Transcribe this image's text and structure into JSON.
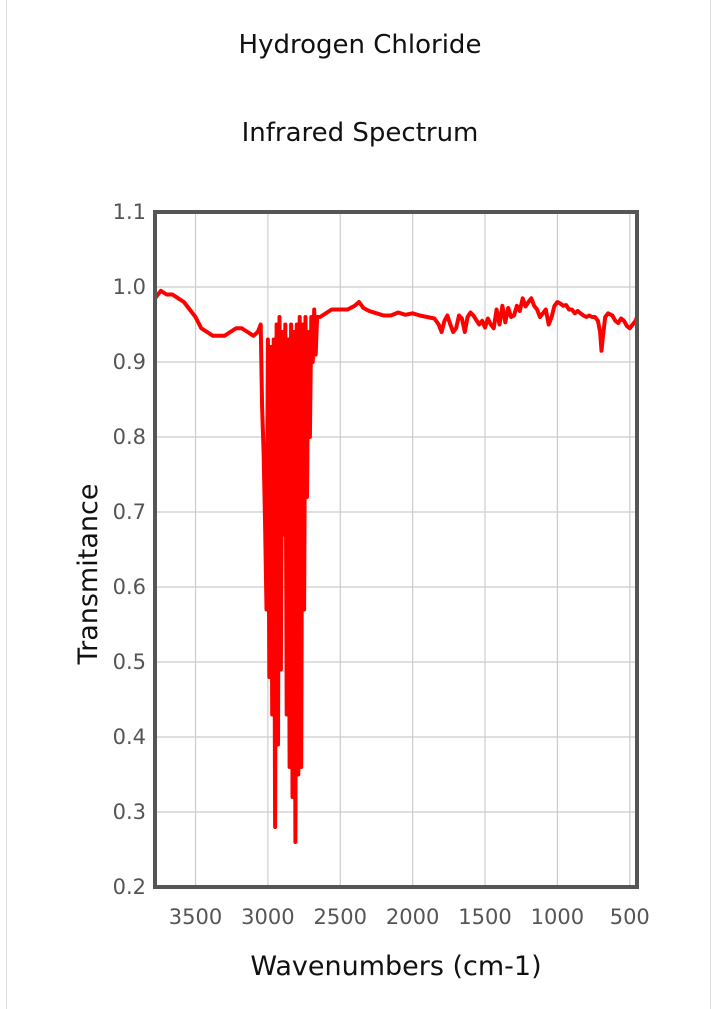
{
  "chart_data": {
    "type": "line",
    "title": "Hydrogen Chloride",
    "subtitle": "Infrared Spectrum",
    "xlabel": "Wavenumbers (cm-1)",
    "ylabel": "Transmitance",
    "xlim": [
      3780,
      450
    ],
    "ylim": [
      0.2,
      1.1
    ],
    "x_reversed": true,
    "x_ticks": [
      "3500",
      "3000",
      "2500",
      "2000",
      "1500",
      "1000",
      "500"
    ],
    "x_tick_values": [
      3500,
      3000,
      2500,
      2000,
      1500,
      1000,
      500
    ],
    "y_ticks": [
      "1.1",
      "1.0",
      "0.9",
      "0.8",
      "0.7",
      "0.6",
      "0.5",
      "0.4",
      "0.3",
      "0.2"
    ],
    "y_tick_values": [
      1.1,
      1.0,
      0.9,
      0.8,
      0.7,
      0.6,
      0.5,
      0.4,
      0.3,
      0.2
    ],
    "grid": true,
    "line_color": "#ff0000",
    "series": [
      {
        "x": [
          3780,
          3740,
          3700,
          3660,
          3620,
          3580,
          3540,
          3500,
          3460,
          3420,
          3380,
          3340,
          3300,
          3260,
          3220,
          3180,
          3140,
          3100,
          3070,
          3050,
          3040,
          3030,
          3020,
          3010,
          3000,
          2990,
          2980,
          2970,
          2960,
          2950,
          2940,
          2930,
          2920,
          2910,
          2900,
          2890,
          2880,
          2870,
          2860,
          2850,
          2840,
          2830,
          2820,
          2810,
          2800,
          2790,
          2780,
          2770,
          2760,
          2750,
          2740,
          2730,
          2720,
          2710,
          2700,
          2690,
          2680,
          2670,
          2660,
          2640,
          2600,
          2560,
          2500,
          2450,
          2400,
          2370,
          2340,
          2320,
          2300,
          2250,
          2200,
          2150,
          2100,
          2050,
          2000,
          1950,
          1900,
          1850,
          1820,
          1800,
          1780,
          1760,
          1740,
          1720,
          1700,
          1680,
          1660,
          1640,
          1620,
          1600,
          1580,
          1560,
          1540,
          1520,
          1500,
          1480,
          1460,
          1440,
          1420,
          1400,
          1380,
          1360,
          1340,
          1320,
          1300,
          1280,
          1260,
          1240,
          1220,
          1200,
          1180,
          1160,
          1140,
          1120,
          1100,
          1080,
          1060,
          1040,
          1020,
          1000,
          980,
          960,
          940,
          920,
          900,
          880,
          860,
          840,
          820,
          800,
          780,
          760,
          740,
          720,
          705,
          695,
          685,
          670,
          650,
          620,
          600,
          580,
          560,
          540,
          520,
          500,
          480,
          460,
          450
        ],
        "y": [
          0.985,
          0.995,
          0.99,
          0.99,
          0.985,
          0.98,
          0.97,
          0.96,
          0.945,
          0.94,
          0.935,
          0.935,
          0.935,
          0.94,
          0.945,
          0.945,
          0.94,
          0.935,
          0.94,
          0.95,
          0.84,
          0.78,
          0.69,
          0.57,
          0.93,
          0.48,
          0.92,
          0.43,
          0.93,
          0.28,
          0.95,
          0.39,
          0.96,
          0.49,
          0.94,
          0.67,
          0.95,
          0.43,
          0.93,
          0.36,
          0.95,
          0.32,
          0.94,
          0.26,
          0.95,
          0.35,
          0.96,
          0.36,
          0.95,
          0.57,
          0.96,
          0.72,
          0.94,
          0.8,
          0.96,
          0.9,
          0.97,
          0.91,
          0.96,
          0.96,
          0.965,
          0.97,
          0.97,
          0.97,
          0.975,
          0.98,
          0.972,
          0.97,
          0.968,
          0.965,
          0.962,
          0.962,
          0.966,
          0.963,
          0.965,
          0.962,
          0.96,
          0.958,
          0.95,
          0.94,
          0.955,
          0.962,
          0.95,
          0.94,
          0.945,
          0.962,
          0.958,
          0.94,
          0.96,
          0.966,
          0.962,
          0.956,
          0.95,
          0.955,
          0.946,
          0.958,
          0.95,
          0.945,
          0.97,
          0.95,
          0.975,
          0.953,
          0.972,
          0.96,
          0.962,
          0.975,
          0.968,
          0.985,
          0.974,
          0.98,
          0.985,
          0.975,
          0.97,
          0.96,
          0.965,
          0.97,
          0.95,
          0.96,
          0.975,
          0.98,
          0.978,
          0.975,
          0.976,
          0.97,
          0.97,
          0.965,
          0.968,
          0.965,
          0.962,
          0.96,
          0.962,
          0.96,
          0.96,
          0.955,
          0.94,
          0.915,
          0.935,
          0.96,
          0.965,
          0.962,
          0.955,
          0.952,
          0.958,
          0.955,
          0.948,
          0.945,
          0.95,
          0.955,
          0.96
        ]
      }
    ]
  }
}
